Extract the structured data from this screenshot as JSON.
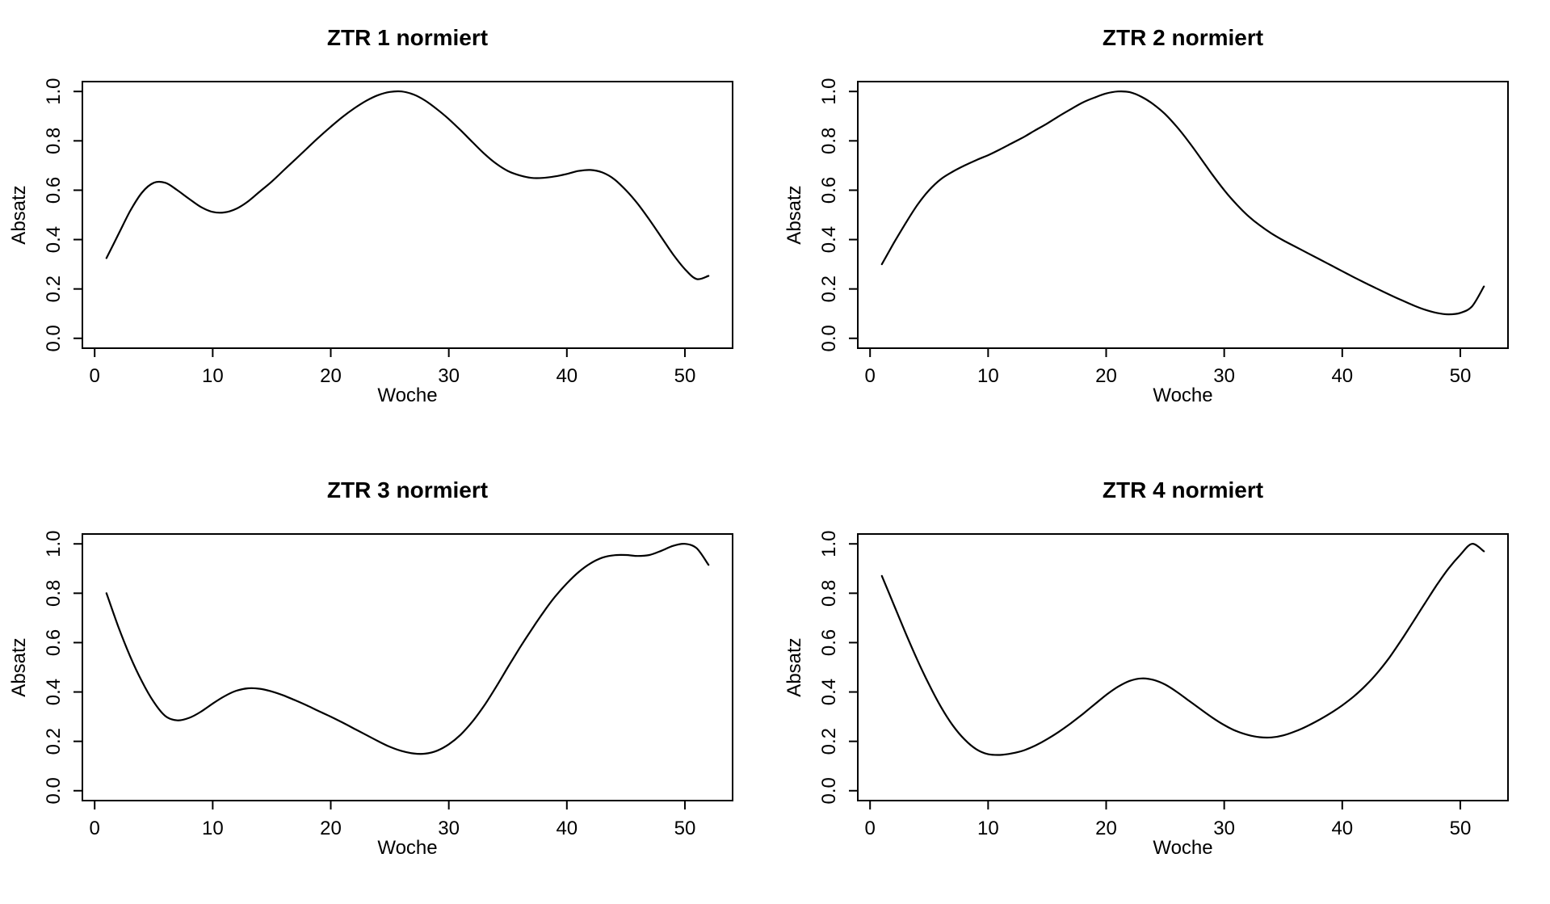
{
  "figure": {
    "background": "#ffffff",
    "line_color": "#000000",
    "text_color": "#000000"
  },
  "chart_data": [
    {
      "type": "line",
      "title": "ZTR 1 normiert",
      "xlabel": "Woche",
      "ylabel": "Absatz",
      "xlim": [
        0,
        54
      ],
      "ylim": [
        0,
        1
      ],
      "grid": false,
      "legend": "none",
      "line_color": "#000000",
      "xticks": [
        0,
        10,
        20,
        30,
        40,
        50
      ],
      "yticks": [
        "0.0",
        "0.2",
        "0.4",
        "0.6",
        "0.8",
        "1.0"
      ],
      "x": [
        1,
        2,
        3,
        4,
        5,
        6,
        7,
        8,
        9,
        10,
        11,
        12,
        13,
        14,
        15,
        16,
        17,
        18,
        19,
        20,
        21,
        22,
        23,
        24,
        25,
        26,
        27,
        28,
        29,
        30,
        31,
        32,
        33,
        34,
        35,
        36,
        37,
        38,
        39,
        40,
        41,
        42,
        43,
        44,
        45,
        46,
        47,
        48,
        49,
        50,
        51,
        52
      ],
      "y": [
        0.325,
        0.42,
        0.515,
        0.59,
        0.63,
        0.63,
        0.6,
        0.565,
        0.532,
        0.512,
        0.51,
        0.525,
        0.555,
        0.595,
        0.635,
        0.68,
        0.725,
        0.77,
        0.815,
        0.857,
        0.897,
        0.932,
        0.962,
        0.985,
        0.998,
        1.0,
        0.988,
        0.963,
        0.928,
        0.888,
        0.843,
        0.795,
        0.748,
        0.708,
        0.678,
        0.66,
        0.65,
        0.65,
        0.656,
        0.666,
        0.678,
        0.682,
        0.672,
        0.645,
        0.6,
        0.545,
        0.48,
        0.41,
        0.34,
        0.28,
        0.24,
        0.253
      ]
    },
    {
      "type": "line",
      "title": "ZTR 2 normiert",
      "xlabel": "Woche",
      "ylabel": "Absatz",
      "xlim": [
        0,
        54
      ],
      "ylim": [
        0,
        1
      ],
      "grid": false,
      "legend": "none",
      "line_color": "#000000",
      "xticks": [
        0,
        10,
        20,
        30,
        40,
        50
      ],
      "yticks": [
        "0.0",
        "0.2",
        "0.4",
        "0.6",
        "0.8",
        "1.0"
      ],
      "x": [
        1,
        2,
        3,
        4,
        5,
        6,
        7,
        8,
        9,
        10,
        11,
        12,
        13,
        14,
        15,
        16,
        17,
        18,
        19,
        20,
        21,
        22,
        23,
        24,
        25,
        26,
        27,
        28,
        29,
        30,
        31,
        32,
        33,
        34,
        35,
        36,
        37,
        38,
        39,
        40,
        41,
        42,
        43,
        44,
        45,
        46,
        47,
        48,
        49,
        50,
        51,
        52
      ],
      "y": [
        0.3,
        0.385,
        0.465,
        0.54,
        0.6,
        0.645,
        0.675,
        0.7,
        0.722,
        0.742,
        0.765,
        0.79,
        0.815,
        0.843,
        0.87,
        0.9,
        0.928,
        0.955,
        0.975,
        0.992,
        1.0,
        0.997,
        0.978,
        0.948,
        0.908,
        0.856,
        0.796,
        0.73,
        0.663,
        0.6,
        0.545,
        0.497,
        0.458,
        0.425,
        0.397,
        0.372,
        0.347,
        0.322,
        0.297,
        0.272,
        0.247,
        0.223,
        0.2,
        0.177,
        0.155,
        0.134,
        0.116,
        0.103,
        0.097,
        0.103,
        0.13,
        0.21
      ]
    },
    {
      "type": "line",
      "title": "ZTR 3 normiert",
      "xlabel": "Woche",
      "ylabel": "Absatz",
      "xlim": [
        0,
        54
      ],
      "ylim": [
        0,
        1
      ],
      "grid": false,
      "legend": "none",
      "line_color": "#000000",
      "xticks": [
        0,
        10,
        20,
        30,
        40,
        50
      ],
      "yticks": [
        "0.0",
        "0.2",
        "0.4",
        "0.6",
        "0.8",
        "1.0"
      ],
      "x": [
        1,
        2,
        3,
        4,
        5,
        6,
        7,
        8,
        9,
        10,
        11,
        12,
        13,
        14,
        15,
        16,
        17,
        18,
        19,
        20,
        21,
        22,
        23,
        24,
        25,
        26,
        27,
        28,
        29,
        30,
        31,
        32,
        33,
        34,
        35,
        36,
        37,
        38,
        39,
        40,
        41,
        42,
        43,
        44,
        45,
        46,
        47,
        48,
        49,
        50,
        51,
        52
      ],
      "y": [
        0.8,
        0.665,
        0.545,
        0.443,
        0.36,
        0.302,
        0.285,
        0.295,
        0.32,
        0.353,
        0.383,
        0.405,
        0.415,
        0.413,
        0.402,
        0.386,
        0.366,
        0.345,
        0.322,
        0.3,
        0.276,
        0.251,
        0.226,
        0.201,
        0.178,
        0.161,
        0.151,
        0.15,
        0.162,
        0.188,
        0.227,
        0.28,
        0.345,
        0.42,
        0.5,
        0.578,
        0.652,
        0.722,
        0.786,
        0.84,
        0.886,
        0.921,
        0.944,
        0.954,
        0.955,
        0.951,
        0.955,
        0.972,
        0.992,
        1.0,
        0.982,
        0.915
      ]
    },
    {
      "type": "line",
      "title": "ZTR 4 normiert",
      "xlabel": "Woche",
      "ylabel": "Absatz",
      "xlim": [
        0,
        54
      ],
      "ylim": [
        0,
        1
      ],
      "grid": false,
      "legend": "none",
      "line_color": "#000000",
      "xticks": [
        0,
        10,
        20,
        30,
        40,
        50
      ],
      "yticks": [
        "0.0",
        "0.2",
        "0.4",
        "0.6",
        "0.8",
        "1.0"
      ],
      "x": [
        1,
        2,
        3,
        4,
        5,
        6,
        7,
        8,
        9,
        10,
        11,
        12,
        13,
        14,
        15,
        16,
        17,
        18,
        19,
        20,
        21,
        22,
        23,
        24,
        25,
        26,
        27,
        28,
        29,
        30,
        31,
        32,
        33,
        34,
        35,
        36,
        37,
        38,
        39,
        40,
        41,
        42,
        43,
        44,
        45,
        46,
        47,
        48,
        49,
        50,
        51,
        52
      ],
      "y": [
        0.87,
        0.755,
        0.64,
        0.53,
        0.43,
        0.34,
        0.265,
        0.208,
        0.168,
        0.148,
        0.145,
        0.151,
        0.163,
        0.183,
        0.209,
        0.239,
        0.273,
        0.31,
        0.349,
        0.388,
        0.421,
        0.445,
        0.455,
        0.449,
        0.43,
        0.4,
        0.365,
        0.33,
        0.296,
        0.266,
        0.242,
        0.226,
        0.217,
        0.216,
        0.224,
        0.24,
        0.261,
        0.286,
        0.314,
        0.346,
        0.383,
        0.427,
        0.479,
        0.54,
        0.61,
        0.684,
        0.759,
        0.833,
        0.9,
        0.956,
        1.0,
        0.97
      ]
    }
  ]
}
